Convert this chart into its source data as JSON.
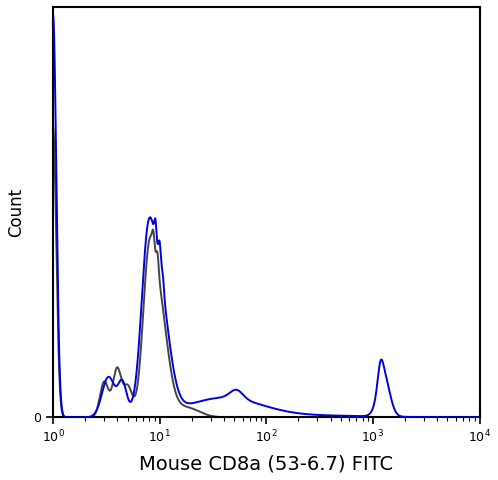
{
  "title": "",
  "xlabel": "Mouse CD8a (53-6.7) FITC",
  "ylabel": "Count",
  "xlabel_fontsize": 14,
  "ylabel_fontsize": 12,
  "background_color": "#ffffff",
  "line_color_blue": "#0000dd",
  "line_color_gray": "#444444",
  "line_width": 1.4,
  "xmin": 1.0,
  "xmax": 10000.0,
  "ymin": 0,
  "ymax": 1.0
}
